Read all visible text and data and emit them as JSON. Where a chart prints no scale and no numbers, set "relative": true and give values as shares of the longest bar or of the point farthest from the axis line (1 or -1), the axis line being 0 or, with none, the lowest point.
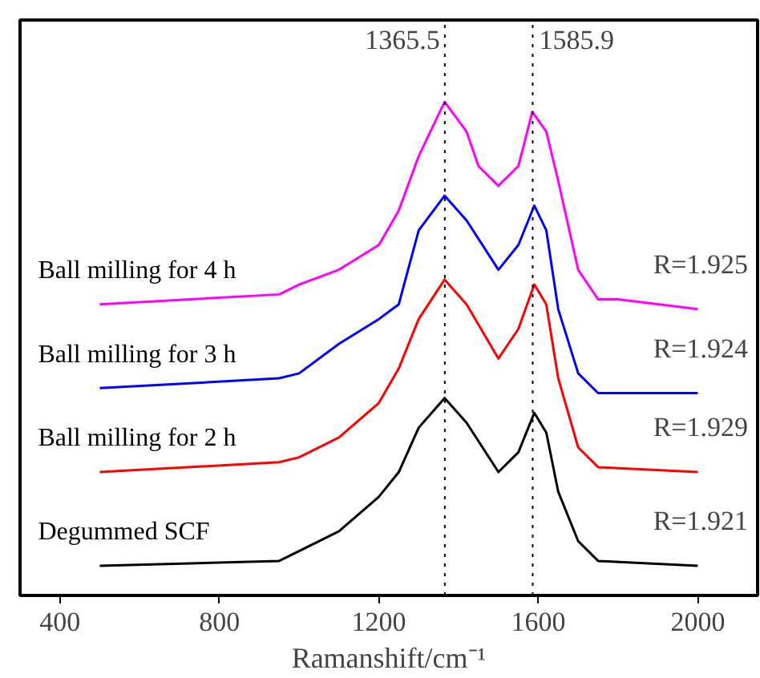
{
  "chart_data": {
    "type": "line",
    "relative": true,
    "xlabel": "Ramanshift/cm⁻¹",
    "xlim": [
      300,
      2150
    ],
    "xticks": [
      400,
      800,
      1200,
      1600,
      2000
    ],
    "grid": false,
    "marker": "none",
    "line_style": "solid",
    "series": [
      {
        "name": "Ball milling for 4 h",
        "color": "#ff00ff",
        "x": [
          500,
          950,
          1000,
          1100,
          1200,
          1250,
          1300,
          1365,
          1420,
          1450,
          1500,
          1550,
          1585,
          1620,
          1650,
          1700,
          1750,
          1800,
          2000
        ],
        "values": [
          0.59,
          0.61,
          0.63,
          0.66,
          0.71,
          0.78,
          0.89,
          1.0,
          0.94,
          0.87,
          0.83,
          0.87,
          0.98,
          0.94,
          0.84,
          0.66,
          0.6,
          0.6,
          0.58
        ]
      },
      {
        "name": "Ball milling for 3 h",
        "color": "#0000ff",
        "x": [
          500,
          950,
          1000,
          1100,
          1200,
          1250,
          1300,
          1365,
          1420,
          1500,
          1550,
          1590,
          1620,
          1650,
          1700,
          1750,
          2000
        ],
        "values": [
          0.42,
          0.44,
          0.45,
          0.51,
          0.56,
          0.59,
          0.74,
          0.81,
          0.76,
          0.66,
          0.71,
          0.79,
          0.74,
          0.58,
          0.45,
          0.41,
          0.41
        ]
      },
      {
        "name": "Ball milling for 2 h",
        "color": "#ff0000",
        "x": [
          500,
          950,
          1000,
          1100,
          1200,
          1250,
          1300,
          1365,
          1420,
          1500,
          1550,
          1590,
          1620,
          1650,
          1700,
          1750,
          2000
        ],
        "values": [
          0.25,
          0.27,
          0.28,
          0.32,
          0.39,
          0.46,
          0.56,
          0.64,
          0.59,
          0.48,
          0.54,
          0.63,
          0.59,
          0.44,
          0.3,
          0.26,
          0.25
        ]
      },
      {
        "name": "Degummed SCF",
        "color": "#000000",
        "x": [
          500,
          950,
          1000,
          1100,
          1200,
          1250,
          1300,
          1365,
          1420,
          1500,
          1550,
          1590,
          1620,
          1650,
          1700,
          1750,
          2000
        ],
        "values": [
          0.06,
          0.07,
          0.09,
          0.13,
          0.2,
          0.25,
          0.34,
          0.4,
          0.35,
          0.25,
          0.29,
          0.37,
          0.33,
          0.21,
          0.11,
          0.07,
          0.06
        ]
      }
    ],
    "ref_lines": [
      {
        "axis": "x",
        "value": 1365.5,
        "label": "1365.5",
        "color": "#000000",
        "line_style": "dotted"
      },
      {
        "axis": "x",
        "value": 1585.9,
        "label": "1585.9",
        "color": "#000000",
        "line_style": "dotted"
      }
    ],
    "annotations": [
      "R=1.925",
      "R=1.924",
      "R=1.929",
      "R=1.921"
    ]
  }
}
